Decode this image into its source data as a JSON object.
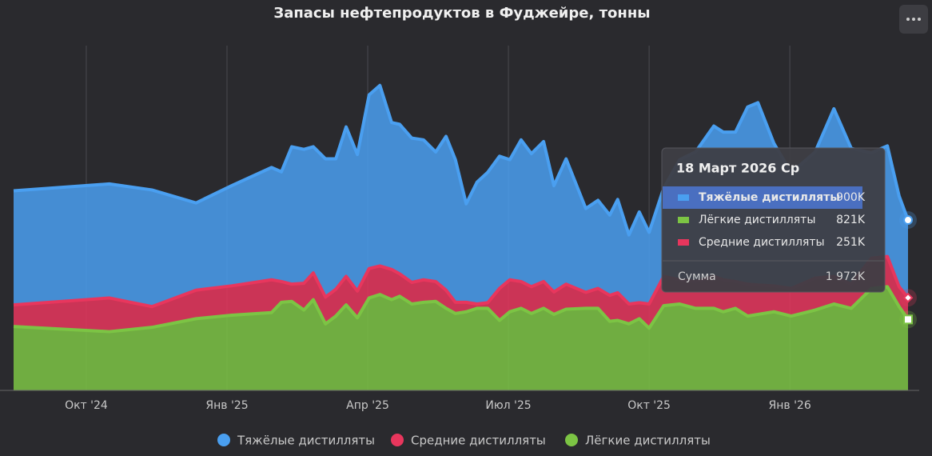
{
  "chart_data": {
    "type": "stacked_area",
    "title": "Запасы нефтепродуктов в Фуджейре, тонны",
    "x": [
      -1.55,
      0.49,
      1.4,
      2.34,
      3.1,
      3.95,
      4.16,
      4.38,
      4.64,
      4.84,
      5.1,
      5.32,
      5.54,
      5.78,
      6.03,
      6.26,
      6.51,
      6.68,
      6.94,
      7.19,
      7.45,
      7.67,
      7.87,
      8.1,
      8.33,
      8.56,
      8.81,
      9.03,
      9.27,
      9.49,
      9.75,
      9.97,
      10.23,
      10.65,
      10.91,
      11.16,
      11.33,
      11.57,
      11.79,
      12.0,
      12.31,
      12.65,
      12.99,
      13.38,
      13.58,
      13.84,
      14.1,
      14.32,
      14.66,
      15.03,
      15.54,
      15.94,
      16.31,
      16.74,
      17.08,
      17.33,
      17.52
    ],
    "xlim": [
      -1.55,
      17.52
    ],
    "xticks": [
      {
        "value": 0,
        "label": "Окт '24"
      },
      {
        "value": 3,
        "label": "Янв '25"
      },
      {
        "value": 6,
        "label": "Апр '25"
      },
      {
        "value": 9,
        "label": "Июл '25"
      },
      {
        "value": 12,
        "label": "Окт '25"
      },
      {
        "value": 15,
        "label": "Янв '26"
      }
    ],
    "ylim": [
      0,
      4000
    ],
    "grid": true,
    "series": [
      {
        "name": "Тяжёлые дистилляты",
        "color": "#4a9ff0",
        "values": [
          1320,
          1320,
          1350,
          1010,
          1160,
          1300,
          1270,
          1590,
          1550,
          1460,
          1600,
          1510,
          1730,
          1580,
          2010,
          2090,
          1700,
          1730,
          1670,
          1620,
          1500,
          1780,
          1650,
          1140,
          1410,
          1510,
          1530,
          1390,
          1640,
          1540,
          1620,
          1230,
          1450,
          970,
          1020,
          930,
          1080,
          800,
          1050,
          830,
          1020,
          1390,
          1500,
          1740,
          1710,
          1730,
          2050,
          2110,
          1650,
          1340,
          1460,
          1940,
          1570,
          1220,
          1280,
          1050,
          900
        ]
      },
      {
        "name": "Средние дистилляты",
        "color": "#e8365d",
        "values": [
          250,
          390,
          240,
          330,
          340,
          380,
          240,
          200,
          310,
          310,
          310,
          310,
          330,
          310,
          340,
          330,
          350,
          260,
          250,
          260,
          230,
          210,
          130,
          110,
          50,
          65,
          370,
          370,
          310,
          310,
          310,
          260,
          290,
          185,
          230,
          300,
          320,
          230,
          185,
          280,
          340,
          280,
          310,
          370,
          370,
          310,
          370,
          340,
          300,
          320,
          370,
          320,
          280,
          350,
          350,
          230,
          251
        ]
      },
      {
        "name": "Лёгкие дистилляты",
        "color": "#7cc444",
        "values": [
          740,
          680,
          730,
          830,
          870,
          900,
          1020,
          1030,
          930,
          1050,
          770,
          860,
          990,
          840,
          1070,
          1110,
          1050,
          1090,
          1000,
          1020,
          1030,
          950,
          890,
          910,
          950,
          950,
          810,
          910,
          950,
          890,
          950,
          880,
          940,
          950,
          950,
          800,
          810,
          770,
          830,
          720,
          980,
          1000,
          950,
          950,
          910,
          950,
          860,
          880,
          910,
          860,
          930,
          1000,
          950,
          1180,
          1200,
          970,
          821
        ]
      }
    ],
    "tooltip": {
      "title": "18 Март 2026 Ср",
      "rows": [
        {
          "name": "Тяжёлые дистилляты",
          "color": "#4a9ff0",
          "value": 900,
          "label": "900K"
        },
        {
          "name": "Лёгкие дистилляты",
          "color": "#7cc444",
          "value": 821,
          "label": "821K"
        },
        {
          "name": "Средние дистилляты",
          "color": "#e8365d",
          "value": 251,
          "label": "251K"
        }
      ],
      "total": {
        "name": "Сумма",
        "value": 1972,
        "label": "1 972K"
      }
    }
  }
}
